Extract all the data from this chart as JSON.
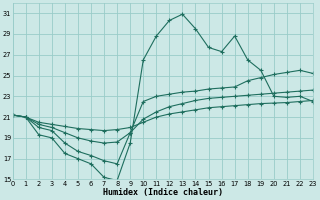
{
  "xlabel": "Humidex (Indice chaleur)",
  "background_color": "#cce8e6",
  "grid_color": "#99ccc9",
  "line_color": "#1e6e5e",
  "xlim": [
    0,
    23
  ],
  "ylim": [
    15,
    32
  ],
  "xticks": [
    0,
    1,
    2,
    3,
    4,
    5,
    6,
    7,
    8,
    9,
    10,
    11,
    12,
    13,
    14,
    15,
    16,
    17,
    18,
    19,
    20,
    21,
    22,
    23
  ],
  "yticks": [
    15,
    17,
    19,
    21,
    23,
    25,
    27,
    29,
    31
  ],
  "line1_x": [
    0,
    1,
    2,
    3,
    4,
    5,
    6,
    7,
    8,
    9,
    10,
    11,
    12,
    13,
    14,
    15,
    16,
    17,
    18,
    19,
    20,
    21,
    22,
    23
  ],
  "line1_y": [
    21.2,
    21.0,
    20.5,
    20.3,
    20.1,
    19.9,
    19.8,
    19.7,
    19.8,
    20.0,
    20.5,
    21.0,
    21.3,
    21.5,
    21.7,
    21.9,
    22.0,
    22.1,
    22.2,
    22.3,
    22.35,
    22.4,
    22.5,
    22.6
  ],
  "line2_x": [
    0,
    1,
    2,
    3,
    4,
    5,
    6,
    7,
    8,
    9,
    10,
    11,
    12,
    13,
    14,
    15,
    16,
    17,
    18,
    19,
    20,
    21,
    22,
    23
  ],
  "line2_y": [
    21.2,
    21.0,
    20.3,
    20.0,
    19.5,
    19.0,
    18.7,
    18.5,
    18.6,
    19.5,
    20.8,
    21.5,
    22.0,
    22.3,
    22.6,
    22.8,
    22.9,
    23.0,
    23.1,
    23.2,
    23.3,
    23.4,
    23.5,
    23.6
  ],
  "line3_x": [
    0,
    1,
    2,
    3,
    4,
    5,
    6,
    7,
    8,
    9,
    10,
    11,
    12,
    13,
    14,
    15,
    16,
    17,
    18,
    19,
    20,
    21,
    22,
    23
  ],
  "line3_y": [
    21.2,
    21.0,
    20.0,
    19.7,
    18.5,
    17.7,
    17.3,
    16.8,
    16.5,
    19.5,
    22.5,
    23.0,
    23.2,
    23.4,
    23.5,
    23.7,
    23.8,
    23.9,
    24.5,
    24.8,
    25.1,
    25.3,
    25.5,
    25.2
  ],
  "line4_x": [
    0,
    1,
    2,
    3,
    4,
    5,
    6,
    7,
    8,
    9,
    10,
    11,
    12,
    13,
    14,
    15,
    16,
    17,
    18,
    19,
    20,
    21,
    22,
    23
  ],
  "line4_y": [
    21.2,
    21.0,
    19.3,
    19.0,
    17.5,
    17.0,
    16.5,
    15.2,
    14.9,
    18.5,
    26.5,
    28.8,
    30.3,
    30.9,
    29.5,
    27.7,
    27.3,
    28.8,
    26.5,
    25.5,
    23.0,
    22.9,
    23.0,
    22.5
  ]
}
